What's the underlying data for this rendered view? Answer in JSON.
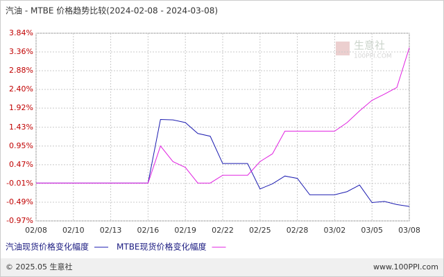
{
  "chart_data": {
    "type": "line",
    "title": "汽油 - MTBE 价格趋势比较(2024-02-08 - 2024-03-08)",
    "categories": [
      "02/08",
      null,
      null,
      "02/10",
      null,
      null,
      "02/13",
      null,
      null,
      "02/16",
      null,
      null,
      "02/19",
      null,
      null,
      "02/22",
      null,
      null,
      "02/25",
      null,
      null,
      "02/28",
      null,
      null,
      "03/02",
      null,
      null,
      "03/05",
      null,
      null,
      "03/08"
    ],
    "series": [
      {
        "name": "汽油现货价格变化幅度",
        "color": "#1a1ab0",
        "values": [
          0,
          0,
          0,
          0,
          0,
          0,
          0,
          0,
          0,
          0,
          1.63,
          1.62,
          1.55,
          1.27,
          1.2,
          0.5,
          0.5,
          0.5,
          -0.15,
          -0.02,
          0.18,
          0.12,
          -0.3,
          -0.3,
          -0.3,
          -0.22,
          -0.05,
          -0.5,
          -0.47,
          -0.55,
          -0.6
        ]
      },
      {
        "name": "MTBE现货价格变化幅度",
        "color": "#e020e0",
        "values": [
          0,
          0,
          0,
          0,
          0,
          0,
          0,
          0,
          0,
          0,
          0.95,
          0.55,
          0.4,
          0,
          0,
          0.2,
          0.2,
          0.2,
          0.55,
          0.75,
          1.33,
          1.33,
          1.33,
          1.33,
          1.33,
          1.55,
          1.85,
          2.12,
          2.28,
          2.45,
          3.47
        ]
      }
    ],
    "ylim": [
      -0.97,
      3.84
    ],
    "yticks": [
      {
        "value": 3.84,
        "label": "3.84%"
      },
      {
        "value": 3.36,
        "label": "3.36%"
      },
      {
        "value": 2.88,
        "label": "2.88%"
      },
      {
        "value": 2.4,
        "label": "2.40%"
      },
      {
        "value": 1.92,
        "label": "1.92%"
      },
      {
        "value": 1.43,
        "label": "1.43%"
      },
      {
        "value": 0.95,
        "label": "0.95%"
      },
      {
        "value": 0.47,
        "label": "0.47%"
      },
      {
        "value": -0.01,
        "label": "-0.01%"
      },
      {
        "value": -0.49,
        "label": "-0.49%"
      },
      {
        "value": -0.97,
        "label": "-0.97%"
      }
    ],
    "grid": true,
    "watermark": "生意社",
    "watermark_sub": "100PPI.COM",
    "footer_left": "© 2025.05 生意社",
    "footer_right": "www.100PPI.com"
  }
}
